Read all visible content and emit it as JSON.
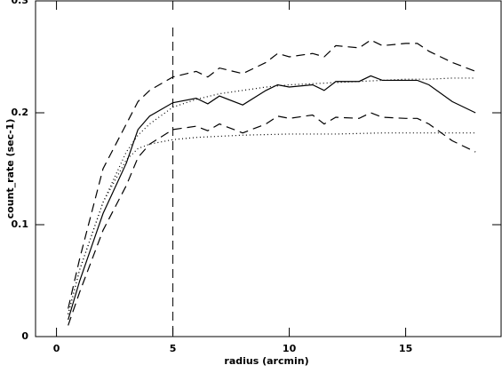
{
  "chart_data": {
    "type": "line",
    "xlabel": "radius (arcmin)",
    "ylabel": "count_rate (sec-1)",
    "xlim": [
      -0.9,
      19.1
    ],
    "ylim": [
      0,
      0.3
    ],
    "xticks": [
      0,
      5,
      10,
      15
    ],
    "yticks": [
      0,
      0.1,
      0.2,
      0.3
    ],
    "vline": 5,
    "vline_dash": "10,6",
    "series": [
      {
        "color": "#000000",
        "dash": "none",
        "x": [
          0.5,
          1,
          2,
          3,
          3.5,
          4,
          5,
          6,
          6.5,
          7,
          8,
          9,
          9.5,
          10,
          11,
          11.5,
          12,
          13,
          13.5,
          14,
          15,
          15.5,
          16,
          17,
          18
        ],
        "values": [
          0.015,
          0.05,
          0.11,
          0.155,
          0.185,
          0.197,
          0.209,
          0.213,
          0.208,
          0.215,
          0.207,
          0.22,
          0.225,
          0.223,
          0.225,
          0.22,
          0.228,
          0.228,
          0.233,
          0.229,
          0.229,
          0.229,
          0.225,
          0.21,
          0.2
        ]
      },
      {
        "color": "#000000",
        "dash": "10,6",
        "x": [
          0.5,
          1,
          2,
          3,
          3.5,
          4,
          5,
          6,
          6.5,
          7,
          8,
          9,
          9.5,
          10,
          11,
          11.5,
          12,
          13,
          13.5,
          14,
          15,
          15.5,
          16,
          17,
          18
        ],
        "values": [
          0.025,
          0.07,
          0.15,
          0.19,
          0.21,
          0.22,
          0.232,
          0.237,
          0.232,
          0.24,
          0.235,
          0.245,
          0.253,
          0.25,
          0.253,
          0.25,
          0.26,
          0.258,
          0.265,
          0.26,
          0.262,
          0.262,
          0.255,
          0.245,
          0.237
        ]
      },
      {
        "color": "#000000",
        "dash": "10,6",
        "x": [
          0.5,
          1,
          2,
          3,
          3.5,
          4,
          5,
          6,
          6.5,
          7,
          8,
          9,
          9.5,
          10,
          11,
          11.5,
          12,
          13,
          13.5,
          14,
          15,
          15.5,
          16,
          17,
          18
        ],
        "values": [
          0.01,
          0.04,
          0.095,
          0.135,
          0.16,
          0.172,
          0.185,
          0.188,
          0.184,
          0.19,
          0.182,
          0.19,
          0.197,
          0.195,
          0.198,
          0.19,
          0.196,
          0.195,
          0.2,
          0.196,
          0.195,
          0.195,
          0.19,
          0.175,
          0.165
        ]
      },
      {
        "color": "#000000",
        "dash": "1,3",
        "x": [
          0.5,
          1,
          2,
          3,
          3.5,
          4,
          5,
          6,
          7,
          8,
          9,
          10,
          11,
          12,
          13,
          14,
          15,
          16,
          17,
          18
        ],
        "values": [
          0.02,
          0.06,
          0.12,
          0.165,
          0.18,
          0.19,
          0.205,
          0.212,
          0.217,
          0.22,
          0.223,
          0.225,
          0.226,
          0.227,
          0.228,
          0.229,
          0.23,
          0.23,
          0.231,
          0.231
        ]
      },
      {
        "color": "#000000",
        "dash": "1,3",
        "x": [
          0.5,
          1,
          2,
          3,
          3.5,
          4,
          5,
          6,
          7,
          8,
          10,
          12,
          14,
          16,
          18
        ],
        "values": [
          0.02,
          0.06,
          0.12,
          0.158,
          0.168,
          0.172,
          0.176,
          0.178,
          0.179,
          0.18,
          0.181,
          0.181,
          0.182,
          0.182,
          0.182
        ]
      }
    ]
  }
}
